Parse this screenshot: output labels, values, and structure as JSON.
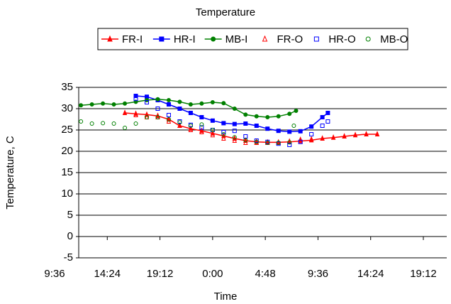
{
  "chart_data": {
    "type": "scatter",
    "title": "Temperature",
    "x_label": "Time",
    "y_label": "Temperature, C",
    "xlim": [
      9.6,
      43.2
    ],
    "xticks": [
      {
        "value": 9.6,
        "label": "9:36"
      },
      {
        "value": 14.4,
        "label": "14:24"
      },
      {
        "value": 19.2,
        "label": "19:12"
      },
      {
        "value": 24,
        "label": "0:00"
      },
      {
        "value": 28.8,
        "label": "4:48"
      },
      {
        "value": 33.6,
        "label": "9:36"
      },
      {
        "value": 38.4,
        "label": "14:24"
      },
      {
        "value": 43.2,
        "label": "19:12"
      }
    ],
    "ylim": [
      -5,
      35
    ],
    "yticks": [
      -5,
      0,
      5,
      10,
      15,
      20,
      25,
      30,
      35
    ],
    "grid": true,
    "legend": "top",
    "series": [
      {
        "name": "FR-I",
        "color": "#ff0000",
        "marker": "triangle",
        "filled": true,
        "line": true,
        "x": [
          16,
          17,
          18,
          19,
          20,
          21,
          22,
          23,
          24,
          25,
          26,
          27,
          28,
          29,
          30,
          31,
          32,
          33,
          34,
          35,
          36,
          37,
          38,
          39
        ],
        "values": [
          29,
          28.8,
          28.6,
          28.3,
          27.5,
          26,
          25.3,
          24.8,
          24.2,
          23.6,
          23,
          22.5,
          22.2,
          22.1,
          22.1,
          22.2,
          22.4,
          22.6,
          23,
          23.2,
          23.5,
          23.8,
          24,
          24
        ]
      },
      {
        "name": "HR-I",
        "color": "#0000ff",
        "marker": "square",
        "filled": true,
        "line": true,
        "x": [
          17,
          18,
          19,
          20,
          21,
          22,
          23,
          24,
          25,
          26,
          27,
          28,
          29,
          30,
          31,
          32,
          33,
          34,
          34.5
        ],
        "values": [
          33,
          32.8,
          32,
          31,
          30,
          29,
          28,
          27.2,
          26.6,
          26.4,
          26.5,
          26,
          25.3,
          24.8,
          24.6,
          24.7,
          25.8,
          28,
          29
        ]
      },
      {
        "name": "MB-I",
        "color": "#008000",
        "marker": "circle",
        "filled": true,
        "line": true,
        "x": [
          12,
          13,
          14,
          15,
          16,
          17,
          18,
          19,
          20,
          21,
          22,
          23,
          24,
          25,
          26,
          27,
          28,
          29,
          30,
          31,
          31.6
        ],
        "values": [
          30.8,
          31,
          31.2,
          31,
          31.2,
          31.6,
          32,
          32.2,
          32,
          31.6,
          31,
          31.2,
          31.5,
          31.3,
          30,
          28.6,
          28.2,
          28,
          28.2,
          28.8,
          29.5
        ]
      },
      {
        "name": "FR-O",
        "color": "#ff0000",
        "marker": "triangle",
        "filled": false,
        "line": false,
        "x": [
          17,
          18,
          19,
          20,
          21,
          22,
          23,
          24,
          25,
          26,
          27,
          28,
          29,
          30,
          31,
          32,
          33
        ],
        "values": [
          28.5,
          28,
          28,
          27,
          26,
          25,
          24.5,
          23.8,
          23,
          22.5,
          22,
          22,
          22,
          22,
          22.3,
          22.7,
          22.8
        ]
      },
      {
        "name": "HR-O",
        "color": "#0000ff",
        "marker": "square",
        "filled": false,
        "line": false,
        "x": [
          17,
          18,
          19,
          20,
          21,
          22,
          23,
          24,
          25,
          26,
          27,
          28,
          29,
          30,
          31,
          32,
          33,
          34,
          34.5
        ],
        "values": [
          32.3,
          31.5,
          30,
          28.5,
          27,
          26.2,
          25.6,
          25,
          24.5,
          24.8,
          23.5,
          22.5,
          22.2,
          21.8,
          21.5,
          22.2,
          24,
          26,
          27
        ]
      },
      {
        "name": "MB-O",
        "color": "#008000",
        "marker": "circle",
        "filled": false,
        "line": false,
        "x": [
          12,
          13,
          14,
          15,
          16,
          17,
          18,
          19,
          20,
          21,
          22,
          23,
          24,
          25,
          26,
          27,
          28,
          29,
          30,
          31,
          31.4
        ],
        "values": [
          27,
          26.5,
          26.6,
          26.5,
          25.5,
          26.5,
          28,
          28,
          27.5,
          26.8,
          26,
          26.3,
          25,
          24,
          23.3,
          22.6,
          22.2,
          22,
          22,
          22.1,
          26
        ]
      }
    ]
  }
}
